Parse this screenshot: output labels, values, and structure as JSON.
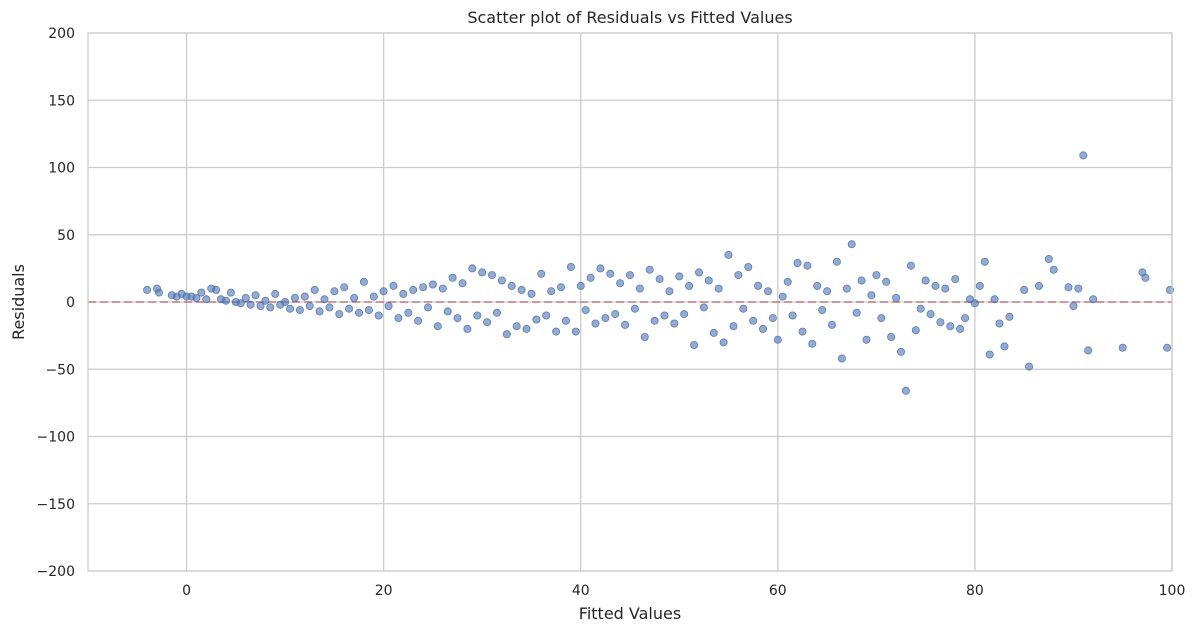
{
  "chart_data": {
    "type": "scatter",
    "title": "Scatter plot of Residuals vs Fitted Values",
    "xlabel": "Fitted Values",
    "ylabel": "Residuals",
    "xlim": [
      -10,
      100
    ],
    "ylim": [
      -200,
      200
    ],
    "xticks": [
      0,
      20,
      40,
      60,
      80,
      100
    ],
    "yticks": [
      -200,
      -150,
      -100,
      -50,
      0,
      50,
      100,
      150,
      200
    ],
    "xtick_labels": [
      "0",
      "20",
      "40",
      "60",
      "80",
      "100"
    ],
    "ytick_labels": [
      "−200",
      "−150",
      "−100",
      "−50",
      "0",
      "50",
      "100",
      "150",
      "200"
    ],
    "grid": true,
    "reference_line": {
      "y": 0,
      "style": "dashed",
      "color": "#c44e52"
    },
    "point_color": "#4c72b0",
    "series": [
      {
        "points": [
          [
            -4,
            9
          ],
          [
            -3,
            10
          ],
          [
            -2.8,
            7
          ],
          [
            -1.5,
            5
          ],
          [
            -1,
            4
          ],
          [
            -0.5,
            6
          ],
          [
            0,
            4
          ],
          [
            0.5,
            4
          ],
          [
            1,
            3
          ],
          [
            1.5,
            7
          ],
          [
            2,
            2
          ],
          [
            2.5,
            10
          ],
          [
            3,
            9
          ],
          [
            3.5,
            2
          ],
          [
            4,
            1
          ],
          [
            4.5,
            7
          ],
          [
            5,
            0
          ],
          [
            5.5,
            -1
          ],
          [
            6,
            3
          ],
          [
            6.5,
            -2
          ],
          [
            7,
            5
          ],
          [
            7.5,
            -3
          ],
          [
            8,
            1
          ],
          [
            8.5,
            -4
          ],
          [
            9,
            6
          ],
          [
            9.5,
            -2
          ],
          [
            10,
            0
          ],
          [
            10.5,
            -5
          ],
          [
            11,
            3
          ],
          [
            11.5,
            -6
          ],
          [
            12,
            4
          ],
          [
            12.5,
            -3
          ],
          [
            13,
            9
          ],
          [
            13.5,
            -7
          ],
          [
            14,
            2
          ],
          [
            14.5,
            -4
          ],
          [
            15,
            8
          ],
          [
            15.5,
            -9
          ],
          [
            16,
            11
          ],
          [
            16.5,
            -5
          ],
          [
            17,
            3
          ],
          [
            17.5,
            -8
          ],
          [
            18,
            15
          ],
          [
            18.5,
            -6
          ],
          [
            19,
            4
          ],
          [
            19.5,
            -10
          ],
          [
            20,
            8
          ],
          [
            20.5,
            -3
          ],
          [
            21,
            12
          ],
          [
            21.5,
            -12
          ],
          [
            22,
            6
          ],
          [
            22.5,
            -8
          ],
          [
            23,
            9
          ],
          [
            23.5,
            -14
          ],
          [
            24,
            11
          ],
          [
            24.5,
            -4
          ],
          [
            25,
            13
          ],
          [
            25.5,
            -18
          ],
          [
            26,
            10
          ],
          [
            26.5,
            -7
          ],
          [
            27,
            18
          ],
          [
            27.5,
            -12
          ],
          [
            28,
            14
          ],
          [
            28.5,
            -20
          ],
          [
            29,
            25
          ],
          [
            29.5,
            -10
          ],
          [
            30,
            22
          ],
          [
            30.5,
            -15
          ],
          [
            31,
            20
          ],
          [
            31.5,
            -8
          ],
          [
            32,
            16
          ],
          [
            32.5,
            -24
          ],
          [
            33,
            12
          ],
          [
            33.5,
            -18
          ],
          [
            34,
            9
          ],
          [
            34.5,
            -20
          ],
          [
            35,
            6
          ],
          [
            35.5,
            -13
          ],
          [
            36,
            21
          ],
          [
            36.5,
            -10
          ],
          [
            37,
            8
          ],
          [
            37.5,
            -22
          ],
          [
            38,
            11
          ],
          [
            38.5,
            -14
          ],
          [
            39,
            26
          ],
          [
            39.5,
            -22
          ],
          [
            40,
            12
          ],
          [
            40.5,
            -6
          ],
          [
            41,
            18
          ],
          [
            41.5,
            -16
          ],
          [
            42,
            25
          ],
          [
            42.5,
            -12
          ],
          [
            43,
            21
          ],
          [
            43.5,
            -9
          ],
          [
            44,
            14
          ],
          [
            44.5,
            -17
          ],
          [
            45,
            20
          ],
          [
            45.5,
            -5
          ],
          [
            46,
            10
          ],
          [
            46.5,
            -26
          ],
          [
            47,
            24
          ],
          [
            47.5,
            -14
          ],
          [
            48,
            17
          ],
          [
            48.5,
            -10
          ],
          [
            49,
            8
          ],
          [
            49.5,
            -16
          ],
          [
            50,
            19
          ],
          [
            50.5,
            -9
          ],
          [
            51,
            12
          ],
          [
            51.5,
            -32
          ],
          [
            52,
            22
          ],
          [
            52.5,
            -4
          ],
          [
            53,
            16
          ],
          [
            53.5,
            -23
          ],
          [
            54,
            10
          ],
          [
            54.5,
            -30
          ],
          [
            55,
            35
          ],
          [
            55.5,
            -18
          ],
          [
            56,
            20
          ],
          [
            56.5,
            -5
          ],
          [
            57,
            26
          ],
          [
            57.5,
            -14
          ],
          [
            58,
            12
          ],
          [
            58.5,
            -20
          ],
          [
            59,
            8
          ],
          [
            59.5,
            -12
          ],
          [
            60,
            -28
          ],
          [
            60.5,
            4
          ],
          [
            61,
            15
          ],
          [
            61.5,
            -10
          ],
          [
            62,
            29
          ],
          [
            62.5,
            -22
          ],
          [
            63,
            27
          ],
          [
            63.5,
            -31
          ],
          [
            64,
            12
          ],
          [
            64.5,
            -6
          ],
          [
            65,
            8
          ],
          [
            65.5,
            -17
          ],
          [
            66,
            30
          ],
          [
            66.5,
            -42
          ],
          [
            67,
            10
          ],
          [
            67.5,
            43
          ],
          [
            68,
            -8
          ],
          [
            68.5,
            16
          ],
          [
            69,
            -28
          ],
          [
            69.5,
            5
          ],
          [
            70,
            20
          ],
          [
            70.5,
            -12
          ],
          [
            71,
            15
          ],
          [
            71.5,
            -26
          ],
          [
            72,
            3
          ],
          [
            72.5,
            -37
          ],
          [
            73,
            -66
          ],
          [
            73.5,
            27
          ],
          [
            74,
            -21
          ],
          [
            74.5,
            -5
          ],
          [
            75,
            16
          ],
          [
            75.5,
            -9
          ],
          [
            76,
            12
          ],
          [
            76.5,
            -15
          ],
          [
            77,
            10
          ],
          [
            77.5,
            -18
          ],
          [
            78,
            17
          ],
          [
            78.5,
            -20
          ],
          [
            79,
            -12
          ],
          [
            79.5,
            2
          ],
          [
            80,
            -1
          ],
          [
            80.5,
            12
          ],
          [
            81,
            30
          ],
          [
            81.5,
            -39
          ],
          [
            82,
            2
          ],
          [
            82.5,
            -16
          ],
          [
            83,
            -33
          ],
          [
            83.5,
            -11
          ],
          [
            85,
            9
          ],
          [
            85.5,
            -48
          ],
          [
            86.5,
            12
          ],
          [
            87.5,
            32
          ],
          [
            88,
            24
          ],
          [
            89.5,
            11
          ],
          [
            90,
            -3
          ],
          [
            90.5,
            10
          ],
          [
            91,
            109
          ],
          [
            91.5,
            -36
          ],
          [
            92,
            2
          ],
          [
            95,
            -34
          ],
          [
            97,
            22
          ],
          [
            97.3,
            18
          ],
          [
            99.5,
            -34
          ],
          [
            99.8,
            9
          ]
        ]
      }
    ]
  }
}
